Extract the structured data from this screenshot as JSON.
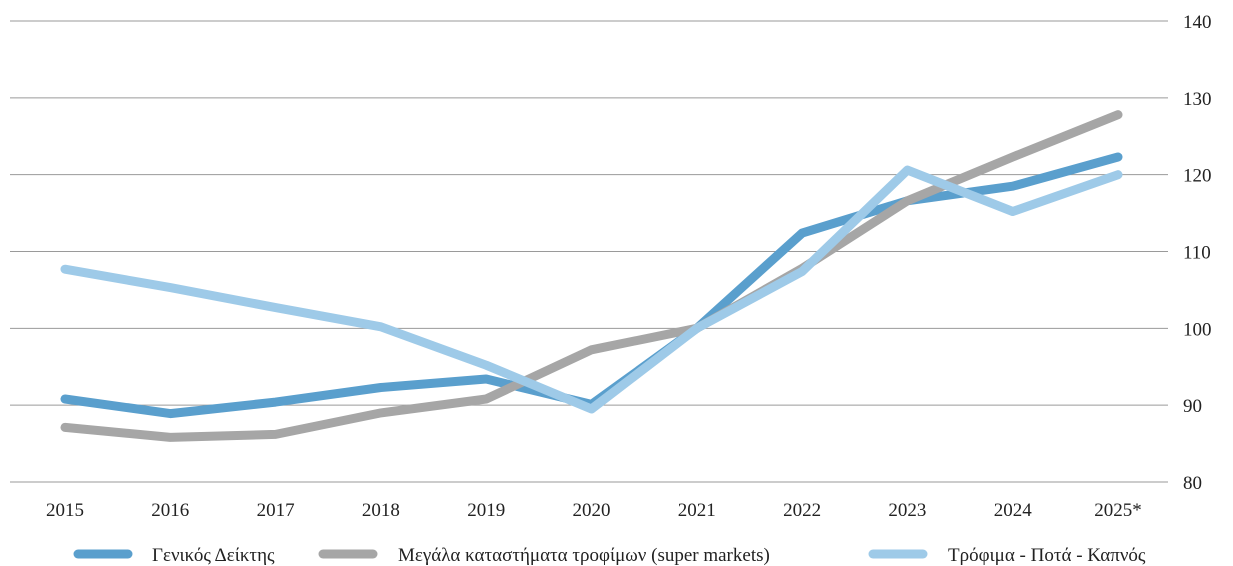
{
  "chart_data": {
    "type": "line",
    "title": "",
    "xlabel": "",
    "ylabel": "",
    "categories": [
      "2015",
      "2016",
      "2017",
      "2018",
      "2019",
      "2020",
      "2021",
      "2022",
      "2023",
      "2024",
      "2025*"
    ],
    "ylim": [
      80,
      140
    ],
    "yticks": [
      "80",
      "90",
      "100",
      "110",
      "120",
      "130",
      "140"
    ],
    "y_axis_side": "right",
    "grid": true,
    "legend_position": "bottom",
    "series": [
      {
        "name": "Γενικός Δείκτης",
        "color": "#5a9fcd",
        "values": [
          90.8,
          88.9,
          90.4,
          92.3,
          93.4,
          90.1,
          100.0,
          112.4,
          116.6,
          118.5,
          122.3
        ]
      },
      {
        "name": "Μεγάλα καταστήματα τροφίμων (super markets)",
        "color": "#a6a6a6",
        "values": [
          87.1,
          85.8,
          86.2,
          89.0,
          90.8,
          97.2,
          100.0,
          107.8,
          116.6,
          122.3,
          127.8
        ]
      },
      {
        "name": "Τρόφιμα - Ποτά - Καπνός",
        "color": "#9ecae8",
        "values": [
          107.7,
          105.3,
          102.7,
          100.2,
          95.2,
          89.5,
          100.0,
          107.4,
          120.6,
          115.2,
          120.0
        ]
      }
    ]
  }
}
